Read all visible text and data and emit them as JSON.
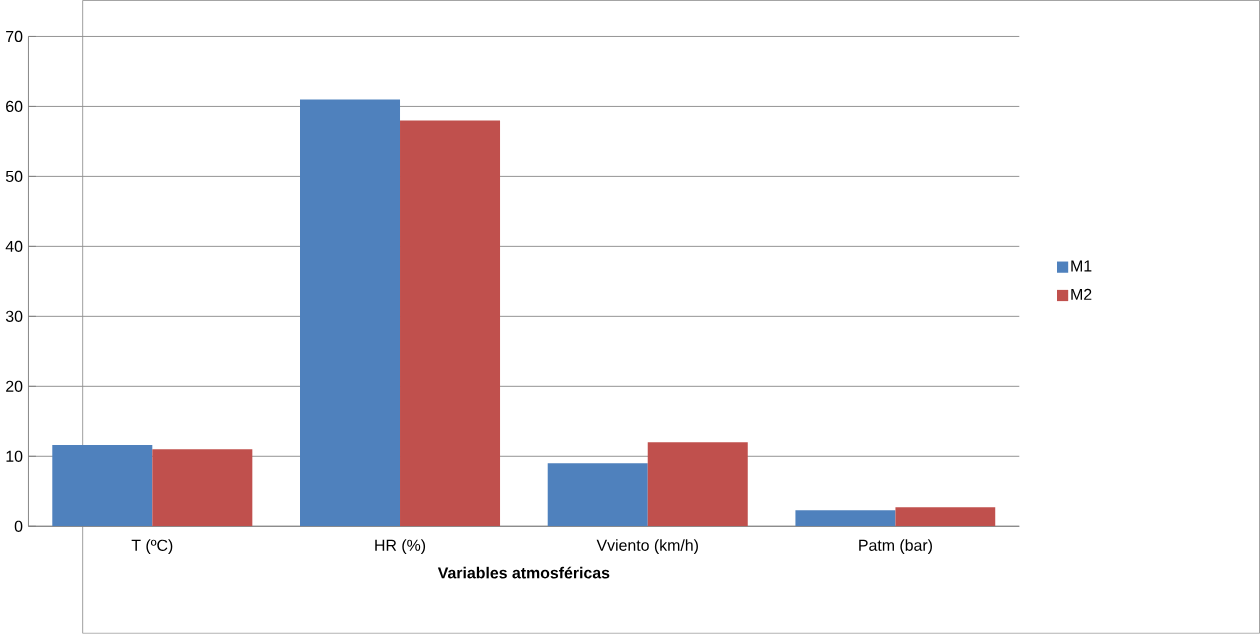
{
  "chart_data": {
    "type": "bar",
    "xlabel": "Variables atmosféricas",
    "categories": [
      "T (ºC)",
      "HR (%)",
      "Vviento (km/h)",
      "Patm (bar)"
    ],
    "series": [
      {
        "name": "M1",
        "color": "#4f81bd",
        "values": [
          11.6,
          61,
          9,
          2.3
        ]
      },
      {
        "name": "M2",
        "color": "#c0504d",
        "values": [
          11,
          58,
          12,
          2.7
        ]
      }
    ],
    "ylim": [
      0,
      70
    ],
    "yticks": [
      0,
      10,
      20,
      30,
      40,
      50,
      60,
      70
    ],
    "grid": "y",
    "legend": "right"
  }
}
